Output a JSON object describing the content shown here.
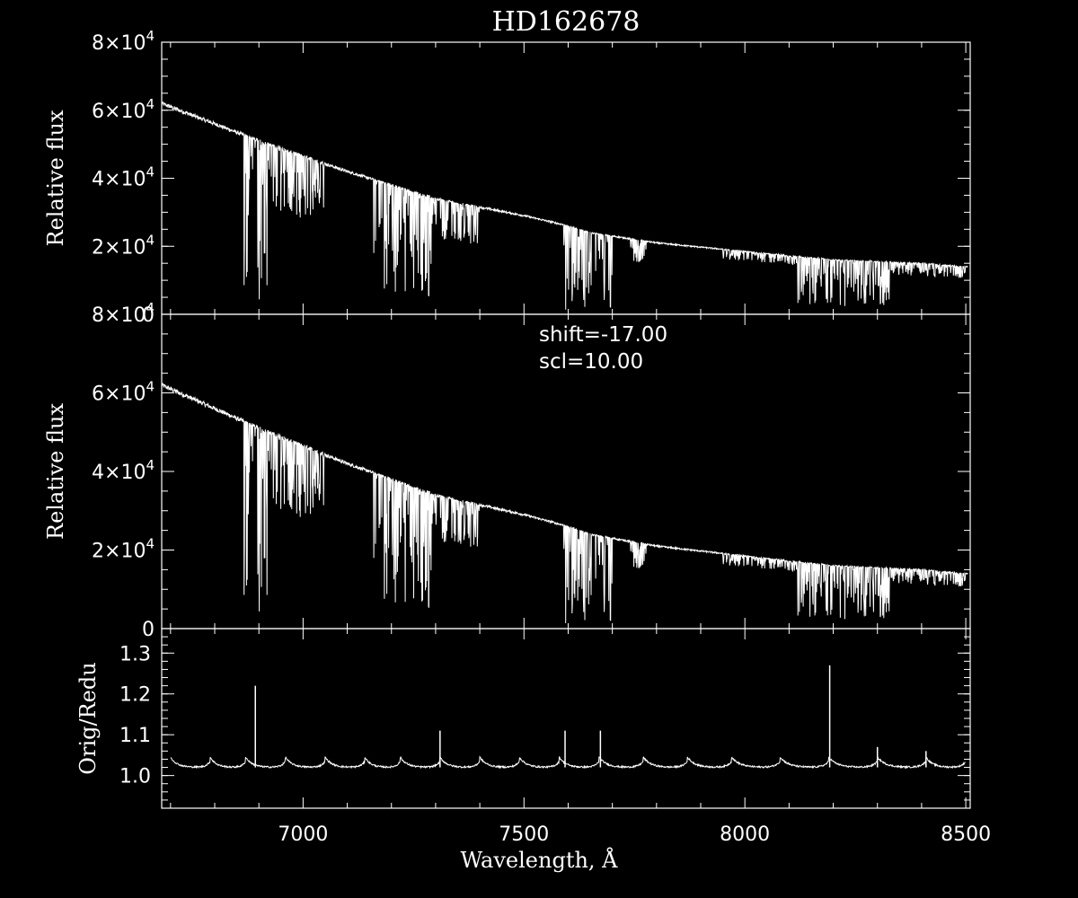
{
  "colors": {
    "background": "#000000",
    "foreground": "#ffffff"
  },
  "chart_data": [
    {
      "type": "line",
      "title": "HD162678",
      "ylabel": "Relative flux",
      "xlim": [
        6680,
        8510
      ],
      "ylim": [
        0,
        80000
      ],
      "yticks": [
        {
          "value": 0,
          "mant": "0",
          "exp": ""
        },
        {
          "value": 20000,
          "mant": "2×10",
          "exp": "4"
        },
        {
          "value": 40000,
          "mant": "4×10",
          "exp": "4"
        },
        {
          "value": 60000,
          "mant": "6×10",
          "exp": "4"
        },
        {
          "value": 80000,
          "mant": "8×10",
          "exp": "4"
        }
      ],
      "continuum": [
        [
          6680,
          62000
        ],
        [
          6900,
          51000
        ],
        [
          7100,
          42000
        ],
        [
          7300,
          34000
        ],
        [
          7500,
          29000
        ],
        [
          7600,
          26000
        ],
        [
          7650,
          24000
        ],
        [
          7800,
          21000
        ],
        [
          8000,
          18500
        ],
        [
          8200,
          16000
        ],
        [
          8400,
          15000
        ],
        [
          8500,
          14000
        ]
      ],
      "bands": [
        {
          "from": 6865,
          "to": 6920,
          "depth": 0.92
        },
        {
          "from": 6920,
          "to": 7050,
          "depth": 0.4
        },
        {
          "from": 7160,
          "to": 7290,
          "depth": 0.85
        },
        {
          "from": 7290,
          "to": 7400,
          "depth": 0.35
        },
        {
          "from": 7590,
          "to": 7700,
          "depth": 0.95
        },
        {
          "from": 7740,
          "to": 7780,
          "depth": 0.3
        },
        {
          "from": 7950,
          "to": 8120,
          "depth": 0.15
        },
        {
          "from": 8120,
          "to": 8330,
          "depth": 0.85
        },
        {
          "from": 8330,
          "to": 8500,
          "depth": 0.25
        }
      ]
    },
    {
      "type": "line",
      "ylabel": "Relative flux",
      "annotations": [
        "shift=-17.00",
        "scl=10.00"
      ],
      "xlim": [
        6680,
        8510
      ],
      "ylim": [
        0,
        80000
      ],
      "yticks": [
        {
          "value": 0,
          "mant": "0",
          "exp": ""
        },
        {
          "value": 20000,
          "mant": "2×10",
          "exp": "4"
        },
        {
          "value": 40000,
          "mant": "4×10",
          "exp": "4"
        },
        {
          "value": 60000,
          "mant": "6×10",
          "exp": "4"
        },
        {
          "value": 80000,
          "mant": "8×10",
          "exp": "4"
        }
      ]
    },
    {
      "type": "line",
      "ylabel": "Orig/Redu",
      "xlabel": "Wavelength, Å",
      "xlim": [
        6680,
        8510
      ],
      "ylim": [
        0.92,
        1.36
      ],
      "xticks": [
        7000,
        7500,
        8000,
        8500
      ],
      "yticks": [
        {
          "value": 1.0,
          "mant": "1.0",
          "exp": ""
        },
        {
          "value": 1.1,
          "mant": "1.1",
          "exp": ""
        },
        {
          "value": 1.2,
          "mant": "1.2",
          "exp": ""
        },
        {
          "value": 1.3,
          "mant": "1.3",
          "exp": ""
        }
      ],
      "baseline": 1.02,
      "orders": [
        6700,
        6790,
        6870,
        6960,
        7050,
        7140,
        7220,
        7310,
        7400,
        7490,
        7580,
        7670,
        7770,
        7870,
        7970,
        8080,
        8190,
        8300,
        8410,
        8500
      ],
      "spikes": [
        [
          6892,
          1.22
        ],
        [
          7310,
          1.11
        ],
        [
          7593,
          1.11
        ],
        [
          7673,
          1.11
        ],
        [
          8192,
          1.27
        ],
        [
          8300,
          1.07
        ],
        [
          8410,
          1.06
        ]
      ]
    }
  ]
}
